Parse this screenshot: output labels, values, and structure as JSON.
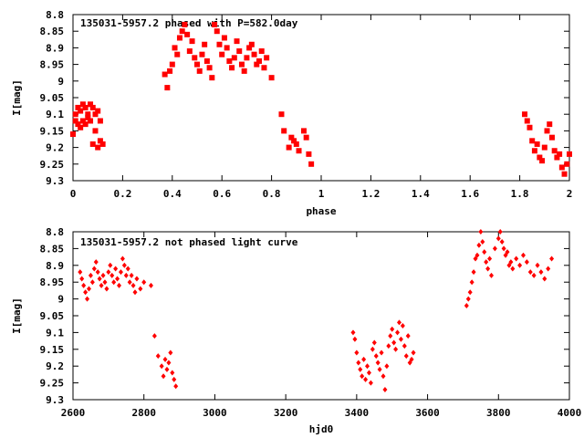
{
  "chart_data": [
    {
      "type": "scatter",
      "title": "135031-5957.2 phased with P=582.0day",
      "xlabel": "phase",
      "ylabel": "I[mag]",
      "xlim": [
        0,
        2
      ],
      "ylim": [
        8.8,
        9.3
      ],
      "y_inverted": true,
      "xticks": [
        "0",
        "0.2",
        "0.4",
        "0.6",
        "0.8",
        "1",
        "1.2",
        "1.4",
        "1.6",
        "1.8",
        "2"
      ],
      "yticks": [
        "8.8",
        "8.85",
        "8.9",
        "8.95",
        "9",
        "9.05",
        "9.1",
        "9.15",
        "9.2",
        "9.25",
        "9.3"
      ],
      "marker": "filled-square",
      "color": "#ff0000",
      "series": [
        {
          "x": [
            0.0,
            0.01,
            0.01,
            0.02,
            0.02,
            0.03,
            0.03,
            0.04,
            0.04,
            0.05,
            0.05,
            0.06,
            0.06,
            0.07,
            0.07,
            0.08,
            0.08,
            0.09,
            0.09,
            0.1,
            0.1,
            0.11,
            0.11,
            0.12,
            0.37,
            0.38,
            0.39,
            0.4,
            0.41,
            0.42,
            0.43,
            0.44,
            0.45,
            0.46,
            0.47,
            0.48,
            0.49,
            0.5,
            0.51,
            0.52,
            0.53,
            0.54,
            0.55,
            0.56,
            0.57,
            0.58,
            0.59,
            0.6,
            0.61,
            0.62,
            0.63,
            0.64,
            0.65,
            0.66,
            0.67,
            0.68,
            0.69,
            0.7,
            0.71,
            0.72,
            0.73,
            0.74,
            0.75,
            0.76,
            0.77,
            0.78,
            0.8,
            0.84,
            0.85,
            0.87,
            0.88,
            0.89,
            0.9,
            0.91,
            0.93,
            0.94,
            0.95,
            0.96,
            1.82,
            1.83,
            1.84,
            1.85,
            1.86,
            1.87,
            1.88,
            1.89,
            1.9,
            1.91,
            1.92,
            1.93,
            1.94,
            1.95,
            1.96,
            1.97,
            1.98,
            1.99,
            2.0
          ],
          "y": [
            9.16,
            9.12,
            9.1,
            9.13,
            9.08,
            9.14,
            9.09,
            9.12,
            9.07,
            9.13,
            9.08,
            9.11,
            9.1,
            9.12,
            9.07,
            9.19,
            9.08,
            9.15,
            9.1,
            9.2,
            9.09,
            9.18,
            9.12,
            9.19,
            8.98,
            9.02,
            8.97,
            8.95,
            8.9,
            8.92,
            8.87,
            8.85,
            8.83,
            8.86,
            8.91,
            8.88,
            8.93,
            8.95,
            8.97,
            8.92,
            8.89,
            8.94,
            8.96,
            8.99,
            8.83,
            8.85,
            8.89,
            8.92,
            8.87,
            8.9,
            8.94,
            8.96,
            8.93,
            8.88,
            8.91,
            8.95,
            8.97,
            8.93,
            8.9,
            8.89,
            8.92,
            8.95,
            8.94,
            8.91,
            8.96,
            8.93,
            8.99,
            9.1,
            9.15,
            9.2,
            9.17,
            9.18,
            9.19,
            9.21,
            9.15,
            9.17,
            9.22,
            9.25,
            9.1,
            9.12,
            9.14,
            9.18,
            9.21,
            9.19,
            9.23,
            9.24,
            9.2,
            9.15,
            9.13,
            9.17,
            9.21,
            9.23,
            9.22,
            9.26,
            9.28,
            9.25,
            9.22
          ]
        }
      ]
    },
    {
      "type": "scatter",
      "title": "135031-5957.2 not phased light curve",
      "xlabel": "hjd0",
      "ylabel": "I[mag]",
      "xlim": [
        2600,
        4000
      ],
      "ylim": [
        8.8,
        9.3
      ],
      "y_inverted": true,
      "xticks": [
        "2600",
        "2800",
        "3000",
        "3200",
        "3400",
        "3600",
        "3800",
        "4000"
      ],
      "yticks": [
        "8.8",
        "8.85",
        "8.9",
        "8.95",
        "9",
        "9.05",
        "9.1",
        "9.15",
        "9.2",
        "9.25",
        "9.3"
      ],
      "marker": "filled-diamond",
      "color": "#ff0000",
      "series": [
        {
          "x": [
            2620,
            2625,
            2630,
            2635,
            2640,
            2645,
            2650,
            2655,
            2660,
            2665,
            2670,
            2675,
            2680,
            2685,
            2690,
            2695,
            2700,
            2705,
            2710,
            2715,
            2720,
            2725,
            2730,
            2735,
            2740,
            2745,
            2750,
            2755,
            2760,
            2765,
            2770,
            2775,
            2780,
            2790,
            2800,
            2820,
            2830,
            2840,
            2850,
            2855,
            2860,
            2865,
            2870,
            2875,
            2880,
            2885,
            2890,
            3390,
            3395,
            3400,
            3405,
            3410,
            3415,
            3420,
            3425,
            3430,
            3435,
            3440,
            3445,
            3450,
            3455,
            3460,
            3465,
            3470,
            3475,
            3480,
            3485,
            3490,
            3495,
            3500,
            3505,
            3510,
            3515,
            3520,
            3525,
            3530,
            3535,
            3540,
            3545,
            3550,
            3555,
            3560,
            3710,
            3715,
            3720,
            3725,
            3730,
            3735,
            3740,
            3745,
            3750,
            3755,
            3760,
            3765,
            3770,
            3775,
            3780,
            3790,
            3800,
            3805,
            3810,
            3815,
            3820,
            3825,
            3830,
            3835,
            3840,
            3850,
            3860,
            3870,
            3880,
            3890,
            3900,
            3910,
            3920,
            3930,
            3940,
            3950
          ],
          "y": [
            8.92,
            8.94,
            8.96,
            8.98,
            9.0,
            8.97,
            8.93,
            8.95,
            8.91,
            8.89,
            8.92,
            8.94,
            8.96,
            8.93,
            8.95,
            8.97,
            8.92,
            8.9,
            8.93,
            8.95,
            8.91,
            8.94,
            8.96,
            8.92,
            8.88,
            8.9,
            8.93,
            8.91,
            8.95,
            8.93,
            8.96,
            8.98,
            8.94,
            8.97,
            8.95,
            8.96,
            9.11,
            9.17,
            9.2,
            9.23,
            9.18,
            9.21,
            9.19,
            9.16,
            9.22,
            9.24,
            9.26,
            9.1,
            9.12,
            9.16,
            9.19,
            9.21,
            9.23,
            9.18,
            9.24,
            9.2,
            9.22,
            9.25,
            9.15,
            9.13,
            9.17,
            9.19,
            9.21,
            9.16,
            9.23,
            9.27,
            9.2,
            9.14,
            9.11,
            9.09,
            9.13,
            9.15,
            9.1,
            9.07,
            9.12,
            9.08,
            9.14,
            9.17,
            9.11,
            9.19,
            9.18,
            9.16,
            9.02,
            9.0,
            8.98,
            8.95,
            8.92,
            8.88,
            8.87,
            8.84,
            8.8,
            8.83,
            8.86,
            8.89,
            8.91,
            8.88,
            8.93,
            8.85,
            8.82,
            8.8,
            8.83,
            8.85,
            8.87,
            8.86,
            8.9,
            8.89,
            8.91,
            8.88,
            8.9,
            8.87,
            8.89,
            8.92,
            8.93,
            8.9,
            8.92,
            8.94,
            8.91,
            8.88
          ]
        }
      ]
    }
  ]
}
